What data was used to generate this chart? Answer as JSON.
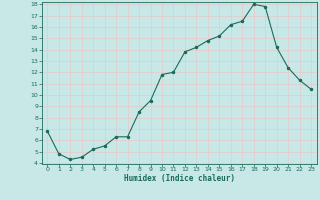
{
  "x": [
    0,
    1,
    2,
    3,
    4,
    5,
    6,
    7,
    8,
    9,
    10,
    11,
    12,
    13,
    14,
    15,
    16,
    17,
    18,
    19,
    20,
    21,
    22,
    23
  ],
  "y": [
    6.8,
    4.8,
    4.3,
    4.5,
    5.2,
    5.5,
    6.3,
    6.3,
    8.5,
    9.5,
    11.8,
    12.0,
    13.8,
    14.2,
    14.8,
    15.2,
    16.2,
    16.5,
    18.0,
    17.8,
    14.2,
    12.4,
    11.3,
    10.5
  ],
  "xlabel": "Humidex (Indice chaleur)",
  "ylim": [
    4,
    18
  ],
  "xlim": [
    -0.5,
    23.5
  ],
  "yticks": [
    4,
    5,
    6,
    7,
    8,
    9,
    10,
    11,
    12,
    13,
    14,
    15,
    16,
    17,
    18
  ],
  "xticks": [
    0,
    1,
    2,
    3,
    4,
    5,
    6,
    7,
    8,
    9,
    10,
    11,
    12,
    13,
    14,
    15,
    16,
    17,
    18,
    19,
    20,
    21,
    22,
    23
  ],
  "line_color": "#1a6b5a",
  "marker_color": "#1a6b5a",
  "bg_color": "#c8e8e8",
  "grid_color": "#e8c8c8",
  "tick_label_color": "#1a6b5a",
  "xlabel_color": "#1a6b5a",
  "spine_color": "#1a6b5a"
}
